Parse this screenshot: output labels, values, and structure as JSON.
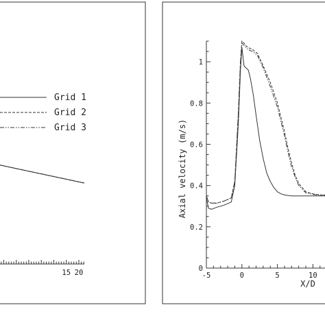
{
  "chart_data": [
    {
      "type": "line",
      "title": "",
      "xlabel": "",
      "ylabel": "",
      "x_tick_labels": [
        "15",
        "20"
      ],
      "x_ticks": [
        15,
        20
      ],
      "xlim": [
        -11.5,
        22.2
      ],
      "ylim": [
        0,
        1.15
      ],
      "grid": false,
      "legend_placement": "top-left",
      "series": [
        {
          "name": "Grid 1",
          "style": "solid",
          "x": [
            -11.5,
            22.2
          ],
          "y": [
            0.44,
            0.36
          ]
        },
        {
          "name": "Grid 2",
          "style": "dashed",
          "x": [
            -11.5,
            22.2
          ],
          "y": [
            0.44,
            0.36
          ]
        },
        {
          "name": "Grid 3",
          "style": "dash-dot-dot",
          "x": [
            -11.5,
            22.2
          ],
          "y": [
            0.44,
            0.36
          ]
        }
      ]
    },
    {
      "type": "line",
      "title": "",
      "xlabel": "X/D",
      "ylabel": "Axial velocity (m/s)",
      "x_tick_labels": [
        "-5",
        "0",
        "5",
        "10"
      ],
      "x_ticks": [
        -5,
        0,
        5,
        10
      ],
      "y_tick_labels": [
        "0",
        "0.2",
        "0.4",
        "0.6",
        "0.8",
        "1"
      ],
      "y_ticks": [
        0,
        0.2,
        0.4,
        0.6,
        0.8,
        1
      ],
      "xlim": [
        -5,
        11.7
      ],
      "ylim": [
        0,
        1.1
      ],
      "grid": false,
      "series": [
        {
          "style": "solid",
          "x": [
            -5,
            -4.7,
            -4.3,
            -3.5,
            -2.5,
            -1.5,
            -1,
            -0.5,
            -0.2,
            0,
            0.3,
            0.6,
            0.9,
            1.2,
            1.6,
            2,
            2.5,
            3,
            3.5,
            4,
            4.5,
            5,
            5.5,
            6,
            6.5,
            7,
            8,
            9,
            10,
            11,
            11.7
          ],
          "y": [
            0.34,
            0.29,
            0.285,
            0.295,
            0.305,
            0.32,
            0.4,
            0.7,
            0.96,
            1.07,
            0.98,
            0.97,
            0.96,
            0.92,
            0.84,
            0.74,
            0.62,
            0.53,
            0.46,
            0.42,
            0.39,
            0.37,
            0.36,
            0.355,
            0.352,
            0.35,
            0.35,
            0.35,
            0.35,
            0.35,
            0.35
          ]
        },
        {
          "style": "dashed",
          "x": [
            -5,
            -4.7,
            -4.3,
            -3.5,
            -2.5,
            -1.5,
            -1,
            -0.5,
            -0.2,
            0,
            0.3,
            0.8,
            1.5,
            2.2,
            3,
            4,
            5,
            6,
            6.5,
            7,
            7.5,
            8,
            9,
            10,
            11,
            11.7
          ],
          "y": [
            0.35,
            0.32,
            0.315,
            0.315,
            0.325,
            0.34,
            0.42,
            0.75,
            1,
            1.1,
            1.09,
            1.07,
            1.06,
            1.04,
            0.98,
            0.9,
            0.8,
            0.66,
            0.58,
            0.51,
            0.45,
            0.41,
            0.37,
            0.36,
            0.355,
            0.355
          ]
        },
        {
          "style": "dash-dot-dot",
          "x": [
            -5,
            -4.7,
            -4.3,
            -3.5,
            -2.5,
            -1.5,
            -1,
            -0.5,
            -0.2,
            0,
            0.3,
            0.8,
            1.5,
            2.2,
            3,
            4,
            5,
            6,
            6.5,
            7,
            7.5,
            8,
            9,
            10,
            11,
            11.7
          ],
          "y": [
            0.35,
            0.32,
            0.315,
            0.315,
            0.325,
            0.34,
            0.42,
            0.75,
            1,
            1.09,
            1.08,
            1.06,
            1.05,
            1.03,
            0.97,
            0.88,
            0.78,
            0.64,
            0.56,
            0.49,
            0.44,
            0.4,
            0.365,
            0.357,
            0.353,
            0.353
          ]
        }
      ]
    }
  ]
}
